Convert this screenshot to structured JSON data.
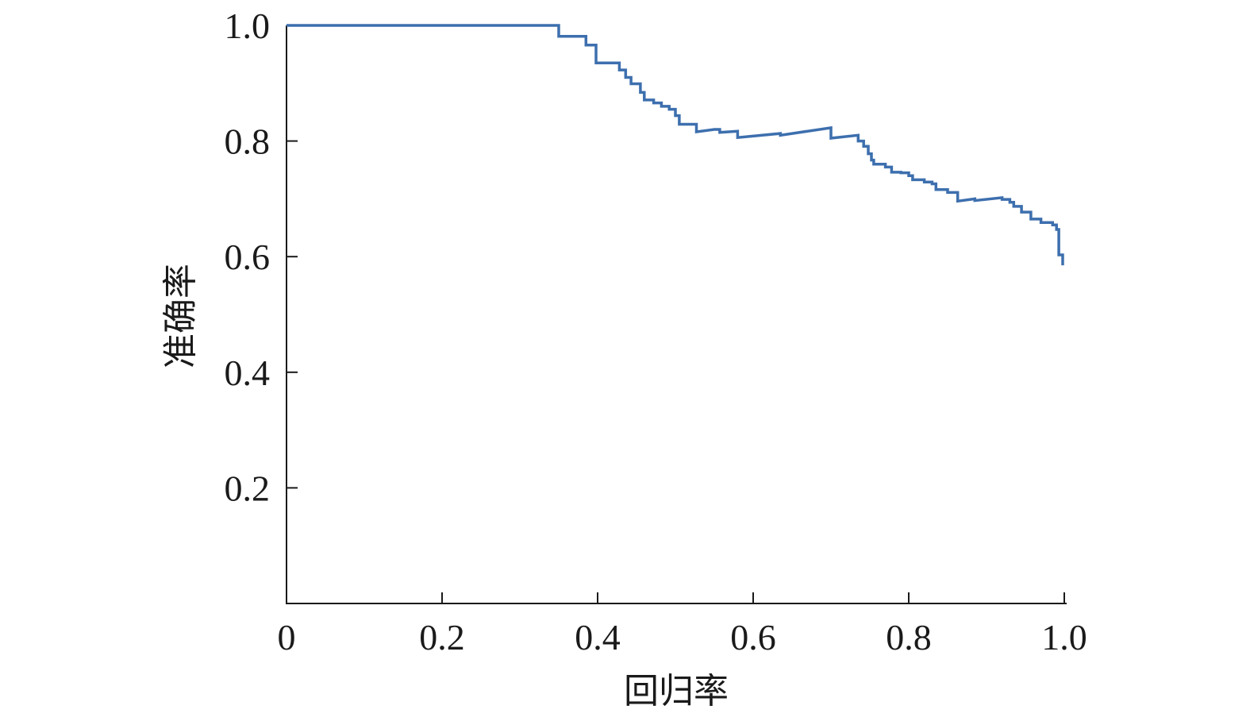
{
  "chart_data": {
    "type": "line",
    "step": true,
    "title": "",
    "xlabel": "回归率",
    "ylabel": "准确率",
    "xlim": [
      0,
      1.0
    ],
    "ylim": [
      0,
      1.0
    ],
    "grid": false,
    "line_color": "#3d6fae",
    "x_ticks": [
      {
        "value": 0,
        "label": "0"
      },
      {
        "value": 0.2,
        "label": "0.2"
      },
      {
        "value": 0.4,
        "label": "0.4"
      },
      {
        "value": 0.6,
        "label": "0.6"
      },
      {
        "value": 0.8,
        "label": "0.8"
      },
      {
        "value": 1.0,
        "label": "1.0"
      }
    ],
    "y_ticks": [
      {
        "value": 0.2,
        "label": "0.2"
      },
      {
        "value": 0.4,
        "label": "0.4"
      },
      {
        "value": 0.6,
        "label": "0.6"
      },
      {
        "value": 0.8,
        "label": "0.8"
      },
      {
        "value": 1.0,
        "label": "1.0"
      }
    ],
    "series": [
      {
        "points": [
          [
            0.0,
            1.0
          ],
          [
            0.35,
            1.0
          ],
          [
            0.35,
            0.981
          ],
          [
            0.385,
            0.981
          ],
          [
            0.385,
            0.966
          ],
          [
            0.398,
            0.966
          ],
          [
            0.398,
            0.935
          ],
          [
            0.428,
            0.935
          ],
          [
            0.428,
            0.923
          ],
          [
            0.436,
            0.923
          ],
          [
            0.436,
            0.91
          ],
          [
            0.443,
            0.91
          ],
          [
            0.443,
            0.899
          ],
          [
            0.455,
            0.899
          ],
          [
            0.455,
            0.884
          ],
          [
            0.46,
            0.884
          ],
          [
            0.46,
            0.871
          ],
          [
            0.472,
            0.871
          ],
          [
            0.472,
            0.866
          ],
          [
            0.482,
            0.866
          ],
          [
            0.482,
            0.86
          ],
          [
            0.492,
            0.86
          ],
          [
            0.492,
            0.855
          ],
          [
            0.5,
            0.855
          ],
          [
            0.5,
            0.844
          ],
          [
            0.505,
            0.844
          ],
          [
            0.505,
            0.829
          ],
          [
            0.527,
            0.829
          ],
          [
            0.527,
            0.816
          ],
          [
            0.55,
            0.82
          ],
          [
            0.557,
            0.82
          ],
          [
            0.557,
            0.815
          ],
          [
            0.58,
            0.817
          ],
          [
            0.58,
            0.806
          ],
          [
            0.635,
            0.813
          ],
          [
            0.635,
            0.81
          ],
          [
            0.7,
            0.823
          ],
          [
            0.7,
            0.805
          ],
          [
            0.735,
            0.81
          ],
          [
            0.735,
            0.8
          ],
          [
            0.742,
            0.8
          ],
          [
            0.742,
            0.791
          ],
          [
            0.748,
            0.791
          ],
          [
            0.748,
            0.778
          ],
          [
            0.752,
            0.778
          ],
          [
            0.752,
            0.767
          ],
          [
            0.755,
            0.767
          ],
          [
            0.755,
            0.76
          ],
          [
            0.77,
            0.76
          ],
          [
            0.77,
            0.755
          ],
          [
            0.778,
            0.755
          ],
          [
            0.778,
            0.746
          ],
          [
            0.79,
            0.746
          ],
          [
            0.79,
            0.745
          ],
          [
            0.8,
            0.745
          ],
          [
            0.8,
            0.74
          ],
          [
            0.805,
            0.74
          ],
          [
            0.805,
            0.733
          ],
          [
            0.82,
            0.733
          ],
          [
            0.82,
            0.729
          ],
          [
            0.83,
            0.729
          ],
          [
            0.83,
            0.726
          ],
          [
            0.835,
            0.726
          ],
          [
            0.835,
            0.716
          ],
          [
            0.85,
            0.716
          ],
          [
            0.85,
            0.711
          ],
          [
            0.863,
            0.711
          ],
          [
            0.863,
            0.696
          ],
          [
            0.885,
            0.7
          ],
          [
            0.885,
            0.697
          ],
          [
            0.92,
            0.702
          ],
          [
            0.92,
            0.699
          ],
          [
            0.93,
            0.699
          ],
          [
            0.93,
            0.694
          ],
          [
            0.935,
            0.694
          ],
          [
            0.935,
            0.687
          ],
          [
            0.945,
            0.687
          ],
          [
            0.945,
            0.677
          ],
          [
            0.957,
            0.677
          ],
          [
            0.957,
            0.665
          ],
          [
            0.97,
            0.665
          ],
          [
            0.97,
            0.659
          ],
          [
            0.985,
            0.659
          ],
          [
            0.985,
            0.655
          ],
          [
            0.99,
            0.655
          ],
          [
            0.99,
            0.647
          ],
          [
            0.993,
            0.647
          ],
          [
            0.993,
            0.603
          ],
          [
            0.998,
            0.603
          ],
          [
            0.998,
            0.585
          ]
        ]
      }
    ]
  }
}
